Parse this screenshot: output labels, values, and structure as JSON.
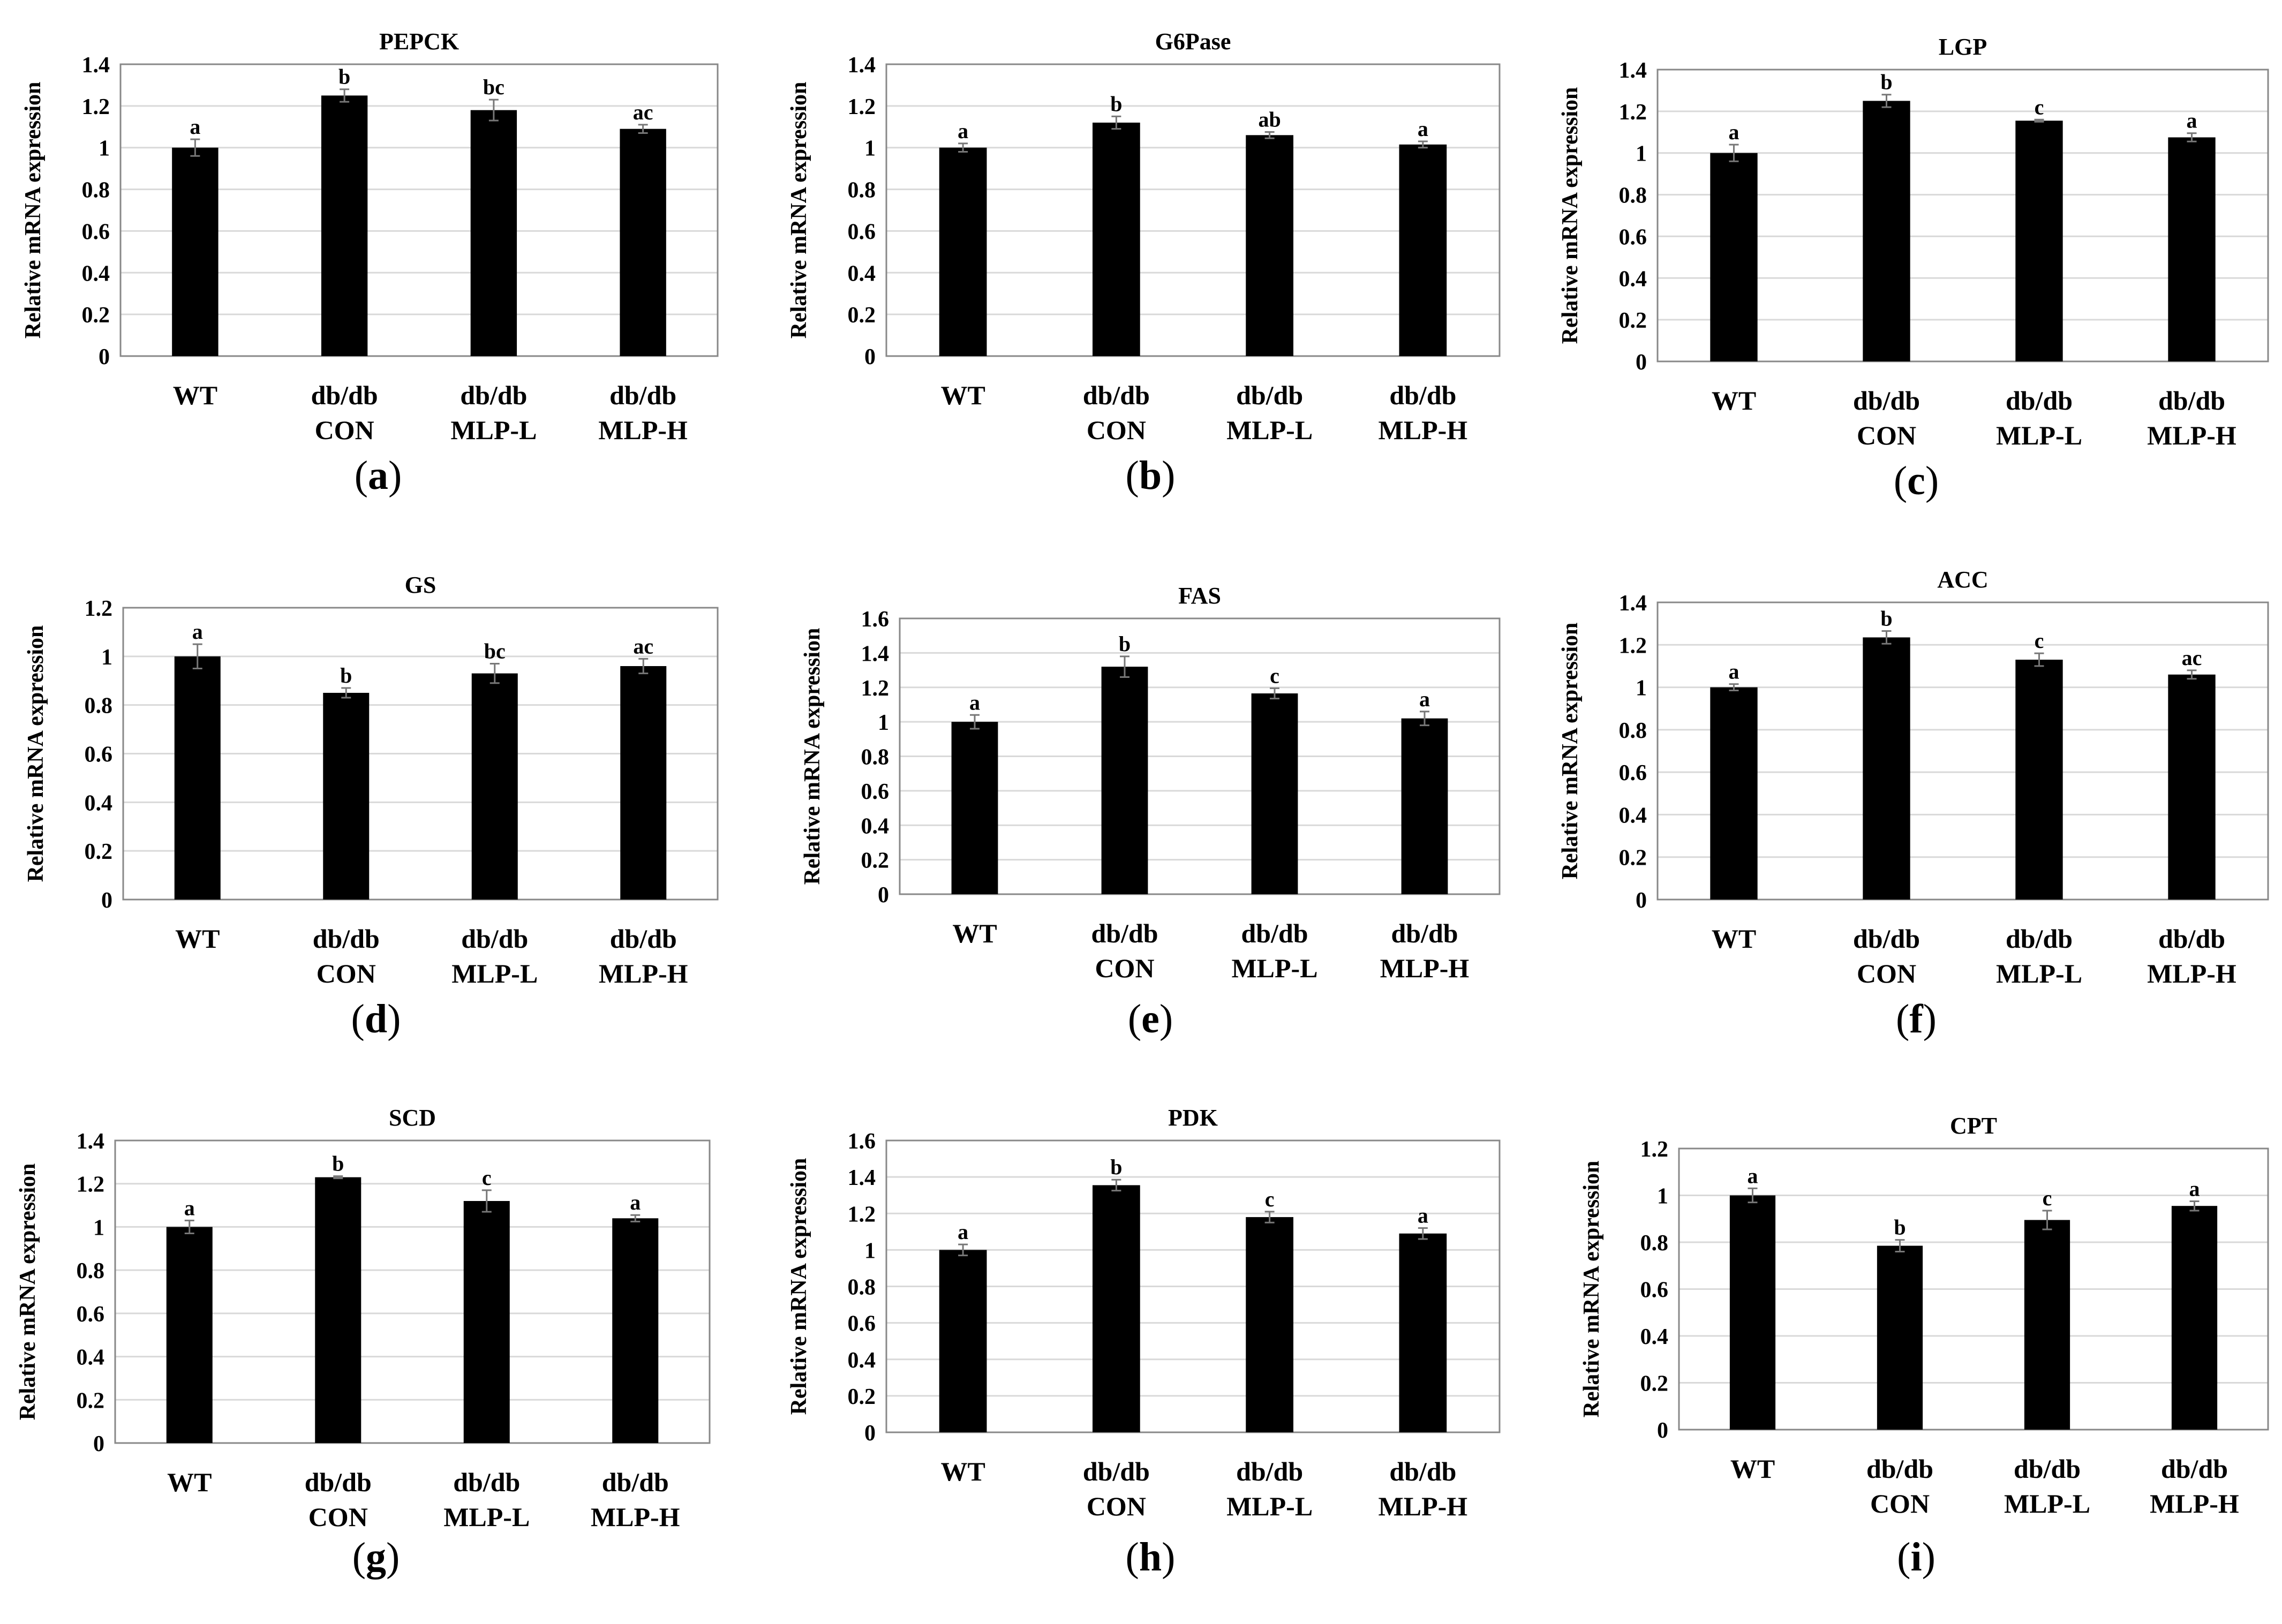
{
  "figure": {
    "y_axis_label": "Relative mRNA expression",
    "categories": [
      {
        "line1": "WT",
        "line2": ""
      },
      {
        "line1": "db/db",
        "line2": "CON"
      },
      {
        "line1": "db/db",
        "line2": "MLP-L"
      },
      {
        "line1": "db/db",
        "line2": "MLP-H"
      }
    ],
    "colors": {
      "bar": "#000000",
      "grid": "#d9d9d9",
      "frame": "#888888",
      "text": "#000000"
    }
  },
  "chart_data": [
    {
      "type": "bar",
      "panel": "(a)",
      "title": "PEPCK",
      "ylabel": "Relative mRNA expression",
      "ylim": [
        0,
        1.4
      ],
      "ytick_step": 0.2,
      "categories": [
        "WT",
        "db/db CON",
        "db/db MLP-L",
        "db/db MLP-H"
      ],
      "values": [
        1.0,
        1.25,
        1.18,
        1.09
      ],
      "errors": [
        0.04,
        0.03,
        0.05,
        0.02
      ],
      "letters": [
        "a",
        "b",
        "bc",
        "ac"
      ]
    },
    {
      "type": "bar",
      "panel": "(b)",
      "title": "G6Pase",
      "ylabel": "Relative mRNA expression",
      "ylim": [
        0,
        1.4
      ],
      "ytick_step": 0.2,
      "categories": [
        "WT",
        "db/db CON",
        "db/db MLP-L",
        "db/db MLP-H"
      ],
      "values": [
        1.0,
        1.12,
        1.06,
        1.015
      ],
      "errors": [
        0.02,
        0.03,
        0.015,
        0.015
      ],
      "letters": [
        "a",
        "b",
        "ab",
        "a"
      ]
    },
    {
      "type": "bar",
      "panel": "(c)",
      "title": "LGP",
      "ylabel": "Relative mRNA expression",
      "ylim": [
        0,
        1.4
      ],
      "ytick_step": 0.2,
      "categories": [
        "WT",
        "db/db CON",
        "db/db MLP-L",
        "db/db MLP-H"
      ],
      "values": [
        1.0,
        1.25,
        1.155,
        1.075
      ],
      "errors": [
        0.04,
        0.03,
        0.005,
        0.02
      ],
      "letters": [
        "a",
        "b",
        "c",
        "a"
      ]
    },
    {
      "type": "bar",
      "panel": "(d)",
      "title": "GS",
      "ylabel": "Relative mRNA expression",
      "ylim": [
        0,
        1.2
      ],
      "ytick_step": 0.2,
      "categories": [
        "WT",
        "db/db CON",
        "db/db MLP-L",
        "db/db MLP-H"
      ],
      "values": [
        1.0,
        0.85,
        0.93,
        0.96
      ],
      "errors": [
        0.05,
        0.02,
        0.04,
        0.03
      ],
      "letters": [
        "a",
        "b",
        "bc",
        "ac"
      ]
    },
    {
      "type": "bar",
      "panel": "(e)",
      "title": "FAS",
      "ylabel": "Relative mRNA expression",
      "ylim": [
        0,
        1.6
      ],
      "ytick_step": 0.2,
      "categories": [
        "WT",
        "db/db CON",
        "db/db MLP-L",
        "db/db MLP-H"
      ],
      "values": [
        1.0,
        1.32,
        1.165,
        1.02
      ],
      "errors": [
        0.04,
        0.06,
        0.03,
        0.04
      ],
      "letters": [
        "a",
        "b",
        "c",
        "a"
      ]
    },
    {
      "type": "bar",
      "panel": "(f)",
      "title": "ACC",
      "ylabel": "Relative mRNA expression",
      "ylim": [
        0,
        1.4
      ],
      "ytick_step": 0.2,
      "categories": [
        "WT",
        "db/db CON",
        "db/db MLP-L",
        "db/db MLP-H"
      ],
      "values": [
        1.0,
        1.235,
        1.13,
        1.06
      ],
      "errors": [
        0.015,
        0.03,
        0.03,
        0.02
      ],
      "letters": [
        "a",
        "b",
        "c",
        "ac"
      ]
    },
    {
      "type": "bar",
      "panel": "(g)",
      "title": "SCD",
      "ylabel": "Relative mRNA expression",
      "ylim": [
        0,
        1.4
      ],
      "ytick_step": 0.2,
      "categories": [
        "WT",
        "db/db CON",
        "db/db MLP-L",
        "db/db MLP-H"
      ],
      "values": [
        1.0,
        1.23,
        1.12,
        1.04
      ],
      "errors": [
        0.03,
        0.005,
        0.05,
        0.015
      ],
      "letters": [
        "a",
        "b",
        "c",
        "a"
      ]
    },
    {
      "type": "bar",
      "panel": "(h)",
      "title": "PDK",
      "ylabel": "Relative mRNA expression",
      "ylim": [
        0,
        1.6
      ],
      "ytick_step": 0.2,
      "categories": [
        "WT",
        "db/db CON",
        "db/db MLP-L",
        "db/db MLP-H"
      ],
      "values": [
        1.0,
        1.355,
        1.18,
        1.09
      ],
      "errors": [
        0.03,
        0.03,
        0.03,
        0.03
      ],
      "letters": [
        "a",
        "b",
        "c",
        "a"
      ]
    },
    {
      "type": "bar",
      "panel": "(i)",
      "title": "CPT",
      "ylabel": "Relative mRNA expression",
      "ylim": [
        0,
        1.2
      ],
      "ytick_step": 0.2,
      "categories": [
        "WT",
        "db/db CON",
        "db/db MLP-L",
        "db/db MLP-H"
      ],
      "values": [
        1.0,
        0.785,
        0.895,
        0.955
      ],
      "errors": [
        0.03,
        0.025,
        0.04,
        0.02
      ],
      "letters": [
        "a",
        "b",
        "c",
        "a"
      ]
    }
  ]
}
